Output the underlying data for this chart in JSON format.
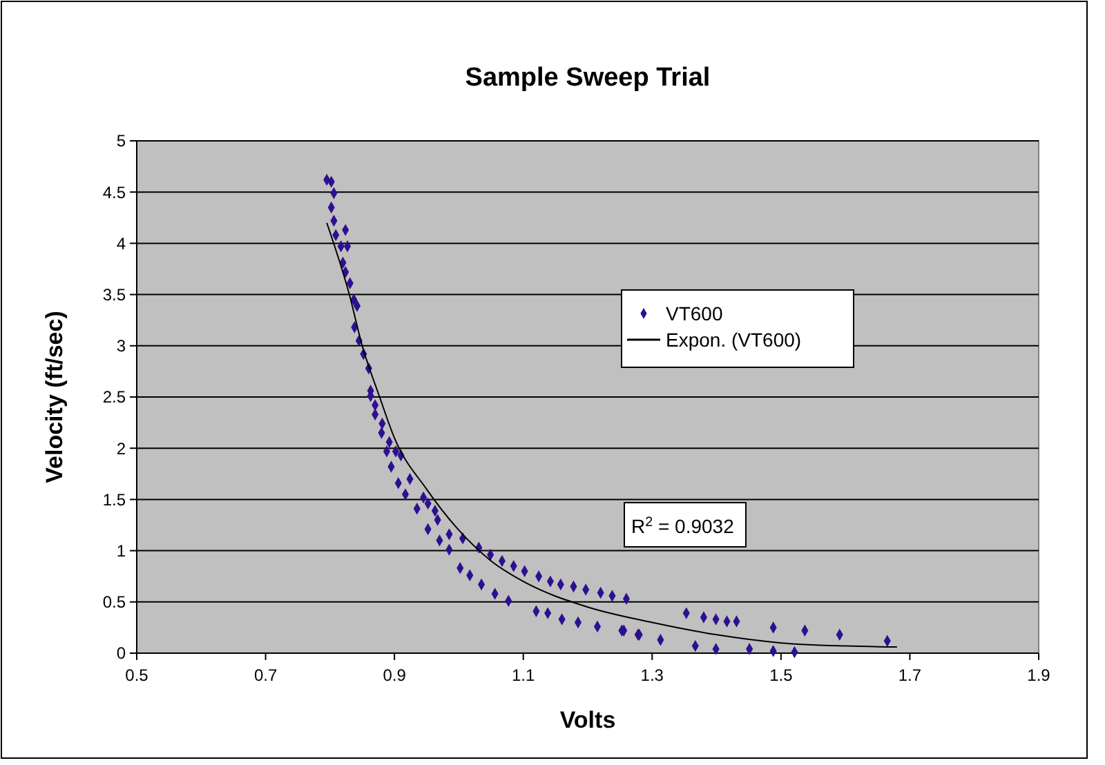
{
  "chart_data": {
    "type": "scatter",
    "title": "Sample Sweep Trial",
    "xlabel": "Volts",
    "ylabel": "Velocity (ft/sec)",
    "xlim": [
      0.5,
      1.9
    ],
    "xticks": [
      0.5,
      0.7,
      0.9,
      1.1,
      1.3,
      1.5,
      1.7,
      1.9
    ],
    "ylim": [
      0,
      5
    ],
    "yticks": [
      0,
      0.5,
      1,
      1.5,
      2,
      2.5,
      3,
      3.5,
      4,
      4.5,
      5
    ],
    "grid": "y",
    "legend": "right",
    "marker": "diamond",
    "annotations": [
      "R$^{2}$ = 0.9032"
    ],
    "series": [
      {
        "name": "VT600",
        "color": "#2e0f8f",
        "x": [
          0.795,
          0.802,
          0.806,
          0.802,
          0.806,
          0.809,
          0.824,
          0.817,
          0.827,
          0.82,
          0.824,
          0.831,
          0.837,
          0.842,
          0.838,
          0.845,
          0.852,
          0.86,
          0.863,
          0.87,
          0.881,
          0.892,
          0.902,
          0.863,
          0.87,
          0.88,
          0.888,
          0.895,
          0.906,
          0.917,
          0.935,
          0.952,
          0.97,
          0.985,
          1.002,
          1.017,
          1.035,
          1.056,
          1.077,
          1.12,
          1.138,
          1.16,
          1.185,
          1.215,
          1.253,
          1.278,
          1.313,
          1.353,
          0.945,
          0.924,
          0.91,
          0.952,
          0.963,
          0.967,
          0.985,
          1.006,
          1.031,
          1.049,
          1.067,
          1.085,
          1.102,
          1.124,
          1.142,
          1.158,
          1.178,
          1.197,
          1.22,
          1.238,
          1.26,
          1.256,
          1.28,
          1.38,
          1.399,
          1.416,
          1.431,
          1.488,
          1.537,
          1.591,
          1.665,
          1.367,
          1.399,
          1.451,
          1.488,
          1.521
        ],
        "values": [
          4.62,
          4.6,
          4.49,
          4.35,
          4.22,
          4.08,
          4.13,
          3.97,
          3.97,
          3.81,
          3.72,
          3.61,
          3.45,
          3.39,
          3.18,
          3.05,
          2.92,
          2.78,
          2.56,
          2.42,
          2.24,
          2.06,
          1.97,
          2.51,
          2.33,
          2.15,
          1.97,
          1.82,
          1.66,
          1.55,
          1.41,
          1.21,
          1.1,
          1.01,
          0.83,
          0.76,
          0.67,
          0.58,
          0.51,
          0.41,
          0.39,
          0.33,
          0.3,
          0.26,
          0.22,
          0.18,
          0.13,
          0.39,
          1.52,
          1.7,
          1.93,
          1.46,
          1.39,
          1.3,
          1.16,
          1.12,
          1.03,
          0.96,
          0.9,
          0.85,
          0.8,
          0.75,
          0.7,
          0.67,
          0.65,
          0.62,
          0.59,
          0.56,
          0.53,
          0.22,
          0.18,
          0.35,
          0.33,
          0.31,
          0.31,
          0.25,
          0.22,
          0.18,
          0.12,
          0.07,
          0.04,
          0.04,
          0.02,
          0.01
        ]
      },
      {
        "name": "Expon. (VT600)",
        "type": "line",
        "color": "#000000",
        "marker": "none",
        "x": [
          0.795,
          0.83,
          0.85,
          0.877,
          0.9,
          0.95,
          1.0,
          1.05,
          1.1,
          1.2,
          1.3,
          1.4,
          1.5,
          1.6,
          1.68
        ],
        "values": [
          4.2,
          3.5,
          3.0,
          2.5,
          2.1,
          1.6,
          1.2,
          0.9,
          0.7,
          0.45,
          0.3,
          0.18,
          0.1,
          0.07,
          0.06
        ]
      }
    ]
  }
}
